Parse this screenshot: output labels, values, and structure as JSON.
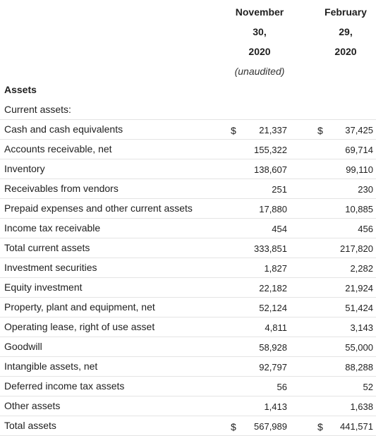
{
  "columns": [
    {
      "line1": "November",
      "line2": "30,",
      "line3": "2020",
      "note": "(unaudited)"
    },
    {
      "line1": "February",
      "line2": "29,",
      "line3": "2020",
      "note": ""
    }
  ],
  "section_title": "Assets",
  "rows": [
    {
      "label": "Current assets:",
      "col1": "",
      "col2": "",
      "dollar1": "",
      "dollar2": ""
    },
    {
      "label": "Cash and cash equivalents",
      "col1": "21,337",
      "col2": "37,425",
      "dollar1": "$",
      "dollar2": "$"
    },
    {
      "label": "Accounts receivable, net",
      "col1": "155,322",
      "col2": "69,714",
      "dollar1": "",
      "dollar2": ""
    },
    {
      "label": "Inventory",
      "col1": "138,607",
      "col2": "99,110",
      "dollar1": "",
      "dollar2": ""
    },
    {
      "label": "Receivables from vendors",
      "col1": "251",
      "col2": "230",
      "dollar1": "",
      "dollar2": ""
    },
    {
      "label": "Prepaid expenses and other current assets",
      "col1": "17,880",
      "col2": "10,885",
      "dollar1": "",
      "dollar2": ""
    },
    {
      "label": "Income tax receivable",
      "col1": "454",
      "col2": "456",
      "dollar1": "",
      "dollar2": ""
    },
    {
      "label": "Total current assets",
      "col1": "333,851",
      "col2": "217,820",
      "dollar1": "",
      "dollar2": ""
    },
    {
      "label": "Investment securities",
      "col1": "1,827",
      "col2": "2,282",
      "dollar1": "",
      "dollar2": ""
    },
    {
      "label": "Equity investment",
      "col1": "22,182",
      "col2": "21,924",
      "dollar1": "",
      "dollar2": ""
    },
    {
      "label": "Property, plant and equipment, net",
      "col1": "52,124",
      "col2": "51,424",
      "dollar1": "",
      "dollar2": ""
    },
    {
      "label": "Operating lease, right of use asset",
      "col1": "4,811",
      "col2": "3,143",
      "dollar1": "",
      "dollar2": ""
    },
    {
      "label": "Goodwill",
      "col1": "58,928",
      "col2": "55,000",
      "dollar1": "",
      "dollar2": ""
    },
    {
      "label": "Intangible assets, net",
      "col1": "92,797",
      "col2": "88,288",
      "dollar1": "",
      "dollar2": ""
    },
    {
      "label": "Deferred income tax assets",
      "col1": "56",
      "col2": "52",
      "dollar1": "",
      "dollar2": ""
    },
    {
      "label": "Other assets",
      "col1": "1,413",
      "col2": "1,638",
      "dollar1": "",
      "dollar2": ""
    },
    {
      "label": "Total assets",
      "col1": "567,989",
      "col2": "441,571",
      "dollar1": "$",
      "dollar2": "$"
    }
  ]
}
